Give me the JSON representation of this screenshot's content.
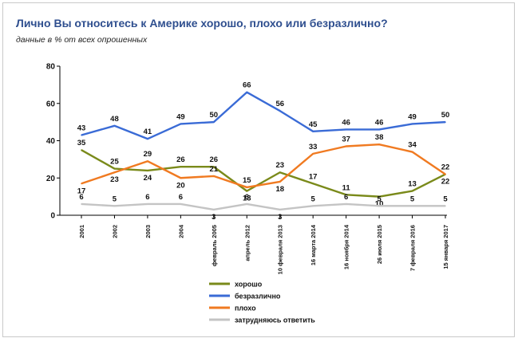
{
  "chart_data": {
    "type": "line",
    "title": "Лично Вы относитесь к Америке хорошо, плохо или безразлично?",
    "subtitle": "данные в % от всех опрошенных",
    "ylim": [
      0,
      80
    ],
    "yticks": [
      "0",
      "20",
      "40",
      "60",
      "80"
    ],
    "categories": [
      "2001",
      "2002",
      "2003",
      "2004",
      "февраль 2005",
      "апрель 2012",
      "10 февраля 2013",
      "16 марта 2014",
      "16 ноября 2014",
      "26 июля 2015",
      "7 февраля 2016",
      "15 января 2017"
    ],
    "series": [
      {
        "name": "хорошо",
        "color": "#7a8a1a",
        "values": [
          35,
          25,
          24,
          26,
          26,
          13,
          23,
          17,
          11,
          10,
          13,
          22
        ],
        "label_pos": [
          "above",
          "above",
          "below",
          "above",
          "above",
          "below",
          "above",
          "above",
          "above",
          "below",
          "above",
          "below"
        ]
      },
      {
        "name": "безразлично",
        "color": "#3a6bd6",
        "values": [
          43,
          48,
          41,
          49,
          50,
          66,
          56,
          45,
          46,
          46,
          49,
          50
        ],
        "label_pos": [
          "above",
          "above",
          "above",
          "above",
          "above",
          "above",
          "above",
          "above",
          "above",
          "above",
          "above",
          "above"
        ]
      },
      {
        "name": "плохо",
        "color": "#f07a21",
        "values": [
          17,
          23,
          29,
          20,
          21,
          15,
          18,
          33,
          37,
          38,
          34,
          22
        ],
        "label_pos": [
          "below",
          "below",
          "above",
          "below",
          "above",
          "above",
          "below",
          "above",
          "above",
          "above",
          "above",
          "above"
        ]
      },
      {
        "name": "затрудняюсь ответить",
        "color": "#c4c4c4",
        "values": [
          6,
          5,
          6,
          6,
          3,
          6,
          3,
          5,
          6,
          5,
          5,
          5
        ],
        "label_pos": [
          "above",
          "above",
          "above",
          "above",
          "below",
          "above",
          "below",
          "above",
          "above",
          "above",
          "above",
          "above"
        ]
      }
    ],
    "legend_position": "bottom-center",
    "grid": false
  }
}
